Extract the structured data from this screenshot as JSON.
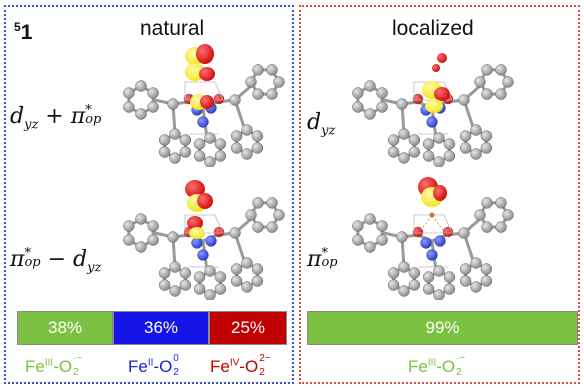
{
  "compound": {
    "sup": "5",
    "number": "1"
  },
  "headings": {
    "left": "natural",
    "right": "localized"
  },
  "orbitals": {
    "top_left": {
      "d": "d",
      "d_sub": "yz",
      "plus": " + ",
      "pi": "π",
      "pi_sup": "*",
      "pi_sub": "op"
    },
    "bottom_left": {
      "pi": "π",
      "pi_sup": "*",
      "pi_sub": "op",
      "minus": " − ",
      "d": "d",
      "d_sub": "yz"
    },
    "top_right": {
      "d": "d",
      "d_sub": "yz"
    },
    "bottom_right": {
      "pi": "π",
      "pi_sup": "*",
      "pi_sub": "op"
    }
  },
  "bars": {
    "natural": [
      {
        "label": "38%",
        "value": 38,
        "color": "#7dc142"
      },
      {
        "label": "36%",
        "value": 36,
        "color": "#1414e6"
      },
      {
        "label": "25%",
        "value": 25,
        "color": "#c00000"
      }
    ],
    "localized": [
      {
        "label": "99%",
        "value": 99,
        "color": "#7dc142"
      }
    ]
  },
  "legend": {
    "fe3": {
      "fe": "Fe",
      "ox": "III",
      "o": "-O",
      "sub": "2",
      "sup": "·−",
      "color": "#7dc142"
    },
    "fe2": {
      "fe": "Fe",
      "ox": "II",
      "o": "-O",
      "sub": "2",
      "sup": "0",
      "color": "#1f1fd0"
    },
    "fe4": {
      "fe": "Fe",
      "ox": "IV",
      "o": "-O",
      "sub": "2",
      "sup": "2−",
      "color": "#c00000"
    },
    "fe3_right": {
      "fe": "Fe",
      "ox": "III",
      "o": "-O",
      "sub": "2",
      "sup": "·−",
      "color": "#7dc142"
    }
  },
  "colors": {
    "carbon": "#8e8e8e",
    "nitrogen": "#2a3fd8",
    "oxygen": "#d01010",
    "lobe": "#f2e51c",
    "iron": "#c87a3a"
  },
  "icons": [
    "molecule-graphic",
    "orbital-lobe-icon"
  ]
}
